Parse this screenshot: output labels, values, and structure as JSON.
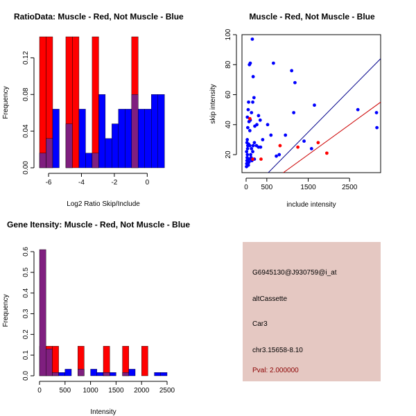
{
  "colors": {
    "muscle": "#ff0000",
    "not_muscle": "#0000ff",
    "overlap": "#7f1f7f",
    "info_bg": "#e5c8c2",
    "pval": "#8b0000",
    "line_blue": "#00008b",
    "line_red": "#cc0000"
  },
  "info_panel": {
    "probe_id": "G6945130@J930759@i_at",
    "event_type": "altCassette",
    "gene": "Car3",
    "location": "chr3.15658-8.10",
    "pval": "Pval: 2.000000"
  },
  "chart_data": [
    {
      "id": "ratio_hist",
      "type": "bar",
      "title": "RatioData: Muscle - Red, Not Muscle - Blue",
      "xlabel": "Log2 Ratio Skip/Include",
      "ylabel": "Frequency",
      "xlim": [
        -6.55,
        1.25
      ],
      "ylim": [
        0,
        0.14
      ],
      "xticks": [
        -6,
        -4,
        -2,
        0
      ],
      "xtick_labels": [
        "-6",
        "-4",
        "-2",
        "0"
      ],
      "yticks": [
        0,
        0.04,
        0.08,
        0.12
      ],
      "ytick_labels": [
        "0.00",
        "0.04",
        "0.08",
        "0.12"
      ],
      "bin_edges": [
        -6.55,
        -6.15,
        -5.75,
        -5.35,
        -4.95,
        -4.55,
        -4.15,
        -3.75,
        -3.35,
        -2.95,
        -2.55,
        -2.15,
        -1.75,
        -1.35,
        -0.95,
        -0.55,
        -0.15,
        0.25,
        0.65,
        1.05
      ],
      "series": [
        {
          "name": "Muscle",
          "color": "#ff0000",
          "values": [
            0.143,
            0.143,
            0,
            0,
            0.143,
            0.143,
            0,
            0,
            0.143,
            0,
            0,
            0,
            0,
            0,
            0.143,
            0,
            0,
            0,
            0
          ]
        },
        {
          "name": "Not Muscle",
          "color": "#0000ff",
          "values": [
            0.016,
            0.032,
            0.064,
            0,
            0.048,
            0,
            0.064,
            0.016,
            0.016,
            0.08,
            0.032,
            0.048,
            0.064,
            0.064,
            0.08,
            0.064,
            0.064,
            0.08,
            0.08
          ]
        }
      ]
    },
    {
      "id": "scatter",
      "type": "scatter",
      "title": "Muscle - Red, Not Muscle - Blue",
      "xlabel": "include intensity",
      "ylabel": "skip intensity",
      "xlim": [
        -100,
        3250
      ],
      "ylim": [
        8,
        100
      ],
      "xticks": [
        0,
        500,
        1500,
        2500
      ],
      "xtick_labels": [
        "0",
        "500",
        "1500",
        "2500"
      ],
      "yticks": [
        20,
        40,
        60,
        80,
        100
      ],
      "ytick_labels": [
        "20",
        "40",
        "60",
        "80",
        "100"
      ],
      "series": [
        {
          "name": "Not Muscle",
          "color": "#0000ff",
          "points": [
            [
              10,
              12
            ],
            [
              15,
              14
            ],
            [
              20,
              16
            ],
            [
              25,
              18
            ],
            [
              30,
              20
            ],
            [
              12,
              22
            ],
            [
              35,
              24
            ],
            [
              40,
              26
            ],
            [
              20,
              28
            ],
            [
              28,
              30
            ],
            [
              30,
              45
            ],
            [
              50,
              50
            ],
            [
              40,
              38
            ],
            [
              60,
              55
            ],
            [
              80,
              80
            ],
            [
              100,
              81
            ],
            [
              150,
              97
            ],
            [
              170,
              72
            ],
            [
              190,
              58
            ],
            [
              160,
              55
            ],
            [
              70,
              42
            ],
            [
              100,
              43
            ],
            [
              90,
              36
            ],
            [
              210,
              39
            ],
            [
              260,
              40
            ],
            [
              300,
              46
            ],
            [
              340,
              43
            ],
            [
              130,
              48
            ],
            [
              170,
              26
            ],
            [
              200,
              28
            ],
            [
              250,
              26
            ],
            [
              300,
              25
            ],
            [
              350,
              25
            ],
            [
              400,
              30
            ],
            [
              120,
              18
            ],
            [
              140,
              16
            ],
            [
              110,
              20
            ],
            [
              160,
              22
            ],
            [
              130,
              24
            ],
            [
              90,
              26
            ],
            [
              60,
              27
            ],
            [
              55,
              13
            ],
            [
              70,
              15
            ],
            [
              80,
              17
            ],
            [
              200,
              17
            ],
            [
              520,
              40
            ],
            [
              600,
              33
            ],
            [
              660,
              81
            ],
            [
              730,
              19
            ],
            [
              800,
              20
            ],
            [
              950,
              33
            ],
            [
              1100,
              76
            ],
            [
              1150,
              48
            ],
            [
              1180,
              68
            ],
            [
              1400,
              29
            ],
            [
              1580,
              24
            ],
            [
              1650,
              53
            ],
            [
              2700,
              50
            ],
            [
              3150,
              48
            ],
            [
              3160,
              38
            ]
          ]
        },
        {
          "name": "Muscle",
          "color": "#ff0000",
          "points": [
            [
              90,
              44
            ],
            [
              160,
              17
            ],
            [
              360,
              17
            ],
            [
              820,
              26
            ],
            [
              1250,
              25
            ],
            [
              1740,
              28
            ],
            [
              1950,
              21
            ]
          ]
        }
      ],
      "lines": [
        {
          "name": "blue_fit",
          "color": "#00008b",
          "from": [
            250,
            0
          ],
          "to": [
            3250,
            84
          ]
        },
        {
          "name": "red_fit",
          "color": "#cc0000",
          "from": [
            500,
            0
          ],
          "to": [
            3250,
            55
          ]
        }
      ]
    },
    {
      "id": "intensity_hist",
      "type": "bar",
      "title": "Gene Itensity: Muscle - Red, Not Muscle - Blue",
      "xlabel": "Intensity",
      "ylabel": "Frequency",
      "xlim": [
        0,
        2500
      ],
      "ylim": [
        0,
        0.62
      ],
      "xticks": [
        0,
        500,
        1000,
        1500,
        2000,
        2500
      ],
      "xtick_labels": [
        "0",
        "500",
        "1000",
        "1500",
        "2000",
        "2500"
      ],
      "yticks": [
        0,
        0.1,
        0.2,
        0.3,
        0.4,
        0.5,
        0.6
      ],
      "ytick_labels": [
        "0.0",
        "0.1",
        "0.2",
        "0.3",
        "0.4",
        "0.5",
        "0.6"
      ],
      "bin_edges": [
        0,
        125,
        250,
        375,
        500,
        625,
        750,
        875,
        1000,
        1125,
        1250,
        1375,
        1500,
        1625,
        1750,
        1875,
        2000,
        2125,
        2250,
        2375,
        2500
      ],
      "series": [
        {
          "name": "Muscle",
          "color": "#ff0000",
          "values": [
            0.143,
            0.143,
            0.143,
            0,
            0,
            0,
            0.143,
            0,
            0,
            0,
            0.143,
            0,
            0,
            0.143,
            0,
            0,
            0.143,
            0,
            0,
            0
          ]
        },
        {
          "name": "Not Muscle",
          "color": "#0000ff",
          "values": [
            0.61,
            0.13,
            0.016,
            0.016,
            0.032,
            0,
            0.032,
            0,
            0.032,
            0.016,
            0.016,
            0.016,
            0,
            0.016,
            0.032,
            0,
            0,
            0,
            0.016,
            0.016
          ]
        }
      ]
    }
  ]
}
